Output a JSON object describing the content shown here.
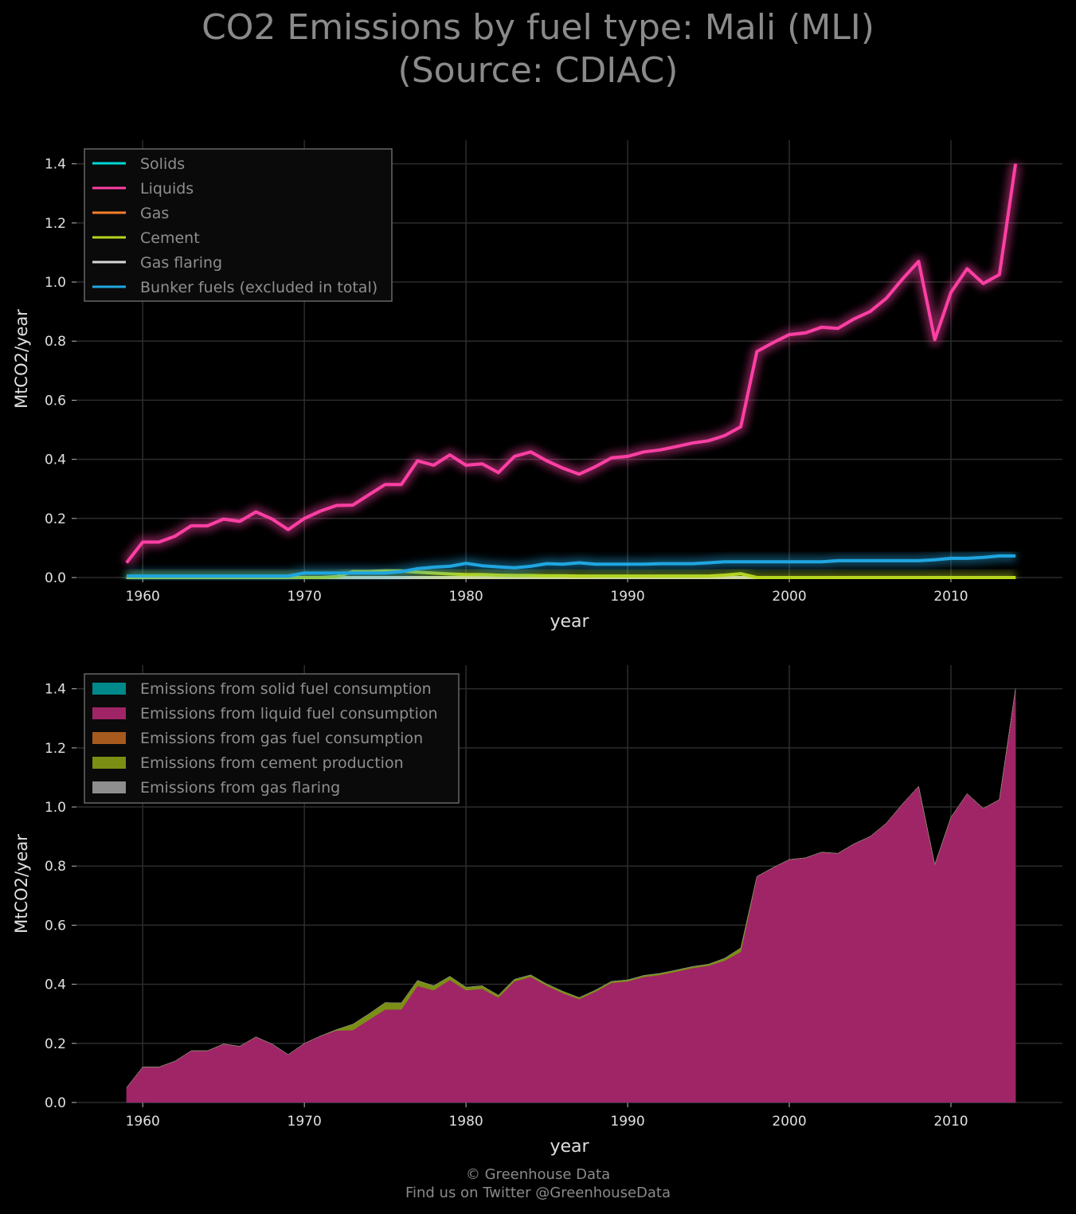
{
  "title": {
    "line1": "CO2 Emissions by fuel type: Mali (MLI)",
    "line2": "(Source: CDIAC)"
  },
  "footer": {
    "line1": "© Greenhouse Data",
    "line2": "Find us on Twitter @GreenhouseData"
  },
  "colors": {
    "solids": "#00d8d8",
    "liquids": "#ff3fa4",
    "gas": "#ff7f2a",
    "cement": "#b5d51e",
    "gas_flaring": "#d8d8d8",
    "bunker": "#1fa6e0",
    "area_solid": "#00898a",
    "area_liquid": "#9f2567",
    "area_gas": "#a75a1d",
    "area_cement": "#7a8f14",
    "area_flaring": "#8e8e8e"
  },
  "chart_data": [
    {
      "type": "line",
      "xlabel": "year",
      "ylabel": "MtCO2/year",
      "xlim": [
        1955.9,
        2016.9
      ],
      "ylim": [
        0.0,
        1.48
      ],
      "xticks": [
        "1960",
        "1970",
        "1980",
        "1990",
        "2000",
        "2010"
      ],
      "yticks": [
        "0.0",
        "0.2",
        "0.4",
        "0.6",
        "0.8",
        "1.0",
        "1.2",
        "1.4"
      ],
      "grid": true,
      "legend": "top-left",
      "x": [
        1959,
        1960,
        1961,
        1962,
        1963,
        1964,
        1965,
        1966,
        1967,
        1968,
        1969,
        1970,
        1971,
        1972,
        1973,
        1974,
        1975,
        1976,
        1977,
        1978,
        1979,
        1980,
        1981,
        1982,
        1983,
        1984,
        1985,
        1986,
        1987,
        1988,
        1989,
        1990,
        1991,
        1992,
        1993,
        1994,
        1995,
        1996,
        1997,
        1998,
        1999,
        2000,
        2001,
        2002,
        2003,
        2004,
        2005,
        2006,
        2007,
        2008,
        2009,
        2010,
        2011,
        2012,
        2013,
        2014
      ],
      "series": [
        {
          "name": "Solids",
          "color_key": "solids",
          "values": [
            0,
            0,
            0,
            0,
            0,
            0,
            0,
            0,
            0,
            0,
            0,
            0,
            0,
            0,
            0,
            0,
            0,
            0,
            0,
            0,
            0,
            0,
            0,
            0,
            0,
            0,
            0,
            0,
            0,
            0,
            0,
            0,
            0,
            0,
            0,
            0,
            0,
            0,
            0,
            0,
            0,
            0,
            0,
            0,
            0,
            0,
            0,
            0,
            0,
            0,
            0,
            0,
            0,
            0,
            0,
            0
          ]
        },
        {
          "name": "Liquids",
          "color_key": "liquids",
          "values": [
            0.05,
            0.12,
            0.12,
            0.14,
            0.175,
            0.175,
            0.198,
            0.19,
            0.222,
            0.198,
            0.162,
            0.2,
            0.225,
            0.244,
            0.245,
            0.28,
            0.315,
            0.315,
            0.395,
            0.38,
            0.415,
            0.38,
            0.385,
            0.355,
            0.41,
            0.425,
            0.395,
            0.37,
            0.35,
            0.375,
            0.405,
            0.41,
            0.425,
            0.432,
            0.443,
            0.455,
            0.463,
            0.48,
            0.51,
            0.765,
            0.795,
            0.822,
            0.828,
            0.847,
            0.843,
            0.875,
            0.9,
            0.945,
            1.01,
            1.07,
            0.805,
            0.965,
            1.045,
            0.995,
            1.025,
            1.4
          ]
        },
        {
          "name": "Gas",
          "color_key": "gas",
          "values": [
            0,
            0,
            0,
            0,
            0,
            0,
            0,
            0,
            0,
            0,
            0,
            0,
            0,
            0,
            0,
            0,
            0,
            0,
            0,
            0,
            0,
            0,
            0,
            0,
            0,
            0,
            0,
            0,
            0,
            0,
            0,
            0,
            0,
            0,
            0,
            0,
            0,
            0,
            0,
            0,
            0,
            0,
            0,
            0,
            0,
            0,
            0,
            0,
            0,
            0,
            0,
            0,
            0,
            0,
            0,
            0
          ]
        },
        {
          "name": "Cement",
          "color_key": "cement",
          "values": [
            0,
            0,
            0,
            0,
            0,
            0,
            0,
            0,
            0,
            0,
            0,
            0,
            0,
            0.003,
            0.02,
            0.02,
            0.023,
            0.022,
            0.018,
            0.015,
            0.012,
            0.01,
            0.01,
            0.008,
            0.007,
            0.007,
            0.006,
            0.006,
            0.005,
            0.005,
            0.005,
            0.005,
            0.005,
            0.005,
            0.005,
            0.005,
            0.005,
            0.008,
            0.013,
            0,
            0,
            0,
            0,
            0,
            0,
            0,
            0,
            0,
            0,
            0,
            0,
            0,
            0,
            0,
            0,
            0
          ]
        },
        {
          "name": "Gas flaring",
          "color_key": "gas_flaring",
          "values": [
            0,
            0,
            0,
            0,
            0,
            0,
            0,
            0,
            0,
            0,
            0,
            0,
            0,
            0,
            0,
            0,
            0,
            0,
            0,
            0,
            0,
            0,
            0,
            0,
            0,
            0,
            0,
            0,
            0,
            0,
            0,
            0,
            0,
            0,
            0,
            0,
            0,
            0,
            0,
            0,
            0,
            0,
            0,
            0,
            0,
            0,
            0,
            0,
            0,
            0,
            0,
            0,
            0,
            0,
            0,
            0
          ]
        },
        {
          "name": "Bunker fuels (excluded in total)",
          "color_key": "bunker",
          "values": [
            0.005,
            0.005,
            0.005,
            0.005,
            0.005,
            0.005,
            0.005,
            0.005,
            0.005,
            0.005,
            0.005,
            0.015,
            0.015,
            0.015,
            0.015,
            0.015,
            0.015,
            0.02,
            0.03,
            0.035,
            0.038,
            0.048,
            0.04,
            0.036,
            0.033,
            0.038,
            0.047,
            0.045,
            0.05,
            0.045,
            0.045,
            0.045,
            0.045,
            0.047,
            0.047,
            0.047,
            0.05,
            0.053,
            0.053,
            0.053,
            0.053,
            0.053,
            0.053,
            0.053,
            0.057,
            0.057,
            0.057,
            0.057,
            0.057,
            0.057,
            0.06,
            0.065,
            0.065,
            0.068,
            0.073,
            0.073
          ]
        }
      ]
    },
    {
      "type": "area",
      "stacked": true,
      "xlabel": "year",
      "ylabel": "MtCO2/year",
      "xlim": [
        1955.9,
        2016.9
      ],
      "ylim": [
        0.0,
        1.48
      ],
      "xticks": [
        "1960",
        "1970",
        "1980",
        "1990",
        "2000",
        "2010"
      ],
      "yticks": [
        "0.0",
        "0.2",
        "0.4",
        "0.6",
        "0.8",
        "1.0",
        "1.2",
        "1.4"
      ],
      "grid": true,
      "legend": "top-left",
      "series": [
        {
          "name": "Emissions from solid fuel consumption",
          "color_key": "area_solid",
          "source": "Solids"
        },
        {
          "name": "Emissions from liquid fuel consumption",
          "color_key": "area_liquid",
          "source": "Liquids"
        },
        {
          "name": "Emissions from gas fuel consumption",
          "color_key": "area_gas",
          "source": "Gas"
        },
        {
          "name": "Emissions from cement production",
          "color_key": "area_cement",
          "source": "Cement"
        },
        {
          "name": "Emissions from gas flaring",
          "color_key": "area_flaring",
          "source": "Gas flaring"
        }
      ]
    }
  ]
}
